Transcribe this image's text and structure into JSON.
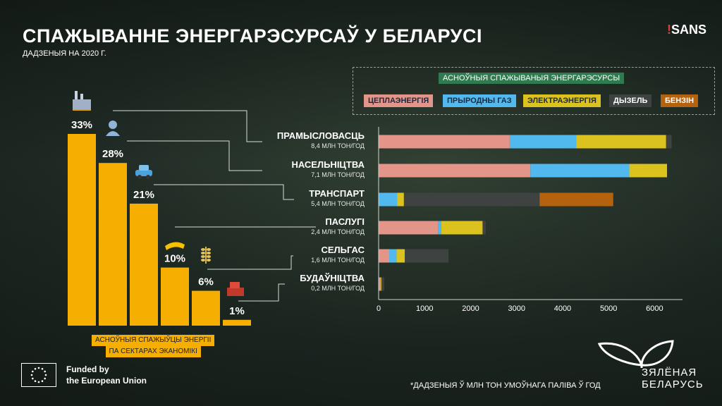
{
  "title": "СПАЖЫВАННЕ ЭНЕРГАРЭСУРСАЎ У БЕЛАРУСІ",
  "subtitle": "ДАДЗЕНЫЯ НА 2020 Г.",
  "brand": {
    "bang": "!",
    "name": "SANS"
  },
  "legend_title": "АСНОЎНЫЯ СПАЖЫВАНЫЯ ЭНЕРГАРЭСУРСЫ",
  "left_caption": [
    "АСНОЎНЫЯ СПАЖЫЎЦЫ ЭНЕРГІІ",
    "ПА СЕКТАРАХ ЭКАНОМІКІ"
  ],
  "footnote": "*ДАДЗЕНЫЯ Ў МЛН ТОН УМОЎНАГА ПАЛІВА Ў ГОД",
  "eu": {
    "line1": "Funded by",
    "line2": "the European Union"
  },
  "zb": {
    "line1": "ЗЯЛЁНАЯ",
    "line2": "БЕЛАРУСЬ"
  },
  "colors": {
    "bar_left": "#f6ae00",
    "heat": "#e3958a",
    "gas": "#52b9ee",
    "electric": "#dcc21e",
    "diesel": "#3e4341",
    "petrol": "#b5620f"
  },
  "chart_data": [
    {
      "type": "bar",
      "categories": [
        "ПРАМЫСЛОВАСЦЬ",
        "НАСЕЛЬНІЦТВА",
        "ТРАНСПАРТ",
        "ПАСЛУГІ",
        "СЕЛЬГАС",
        "БУДАЎНІЦТВА"
      ],
      "values": [
        33,
        28,
        21,
        10,
        6,
        1
      ],
      "labels": [
        "33%",
        "28%",
        "21%",
        "10%",
        "6%",
        "1%"
      ],
      "icons": [
        "factory-icon",
        "person-icon",
        "car-icon",
        "hands-icon",
        "wheat-icon",
        "bricks-icon"
      ],
      "ylim": [
        0,
        33
      ]
    },
    {
      "type": "bar",
      "orientation": "horizontal",
      "stacked": true,
      "categories": [
        "ПРАМЫСЛОВАСЦЬ",
        "НАСЕЛЬНІЦТВА",
        "ТРАНСПАРТ",
        "ПАСЛУГІ",
        "СЕЛЬГАС",
        "БУДАЎНІЦТВА"
      ],
      "category_notes": [
        "8,4 МЛН ТОН/ГОД",
        "7,1 МЛН ТОН/ГОД",
        "5,4 МЛН ТОН/ГОД",
        "2,4 МЛН ТОН/ГОД",
        "1,6 МЛН ТОН/ГОД",
        "0,2 МЛН ТОН/ГОД"
      ],
      "series": [
        {
          "name": "ЦЕПЛАЭНЕРГІЯ",
          "color": "#e3958a",
          "values": [
            2850,
            3300,
            0,
            1300,
            230,
            30
          ]
        },
        {
          "name": "ПРЫРОДНЫ ГАЗ",
          "color": "#52b9ee",
          "values": [
            1450,
            2150,
            400,
            60,
            160,
            10
          ]
        },
        {
          "name": "ЭЛЕКТРАЭНЕРГІЯ",
          "color": "#dcc21e",
          "values": [
            1950,
            820,
            150,
            900,
            180,
            20
          ]
        },
        {
          "name": "ДЫЗЕЛЬ",
          "color": "#3e4341",
          "values": [
            120,
            0,
            2950,
            70,
            950,
            60
          ]
        },
        {
          "name": "БЕНЗІН",
          "color": "#b5620f",
          "values": [
            0,
            0,
            1600,
            0,
            0,
            0
          ]
        }
      ],
      "xticks": [
        0,
        1000,
        2000,
        3000,
        4000,
        5000,
        6000
      ],
      "xlim": [
        0,
        6500
      ]
    }
  ]
}
